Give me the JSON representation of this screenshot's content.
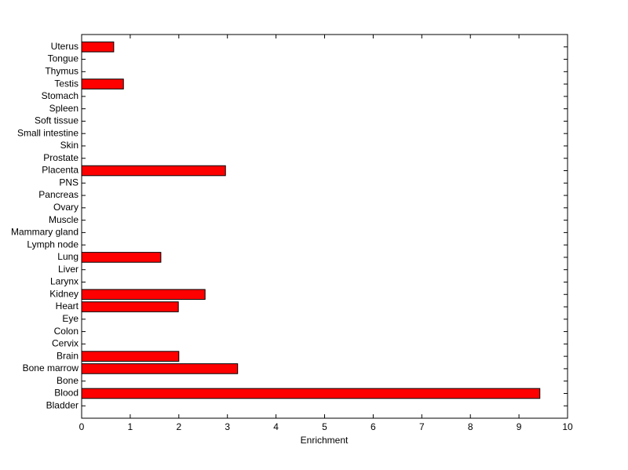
{
  "chart_data": {
    "type": "barh",
    "xlabel": "Enrichment",
    "categories": [
      "Bladder",
      "Blood",
      "Bone",
      "Bone marrow",
      "Brain",
      "Cervix",
      "Colon",
      "Eye",
      "Heart",
      "Kidney",
      "Larynx",
      "Liver",
      "Lung",
      "Lymph node",
      "Mammary gland",
      "Muscle",
      "Ovary",
      "Pancreas",
      "PNS",
      "Placenta",
      "Prostate",
      "Skin",
      "Small intestine",
      "Soft tissue",
      "Spleen",
      "Stomach",
      "Testis",
      "Thymus",
      "Tongue",
      "Uterus"
    ],
    "values": [
      0,
      9.43,
      0,
      3.21,
      2.0,
      0,
      0,
      0,
      1.99,
      2.54,
      0,
      0,
      1.63,
      0,
      0,
      0,
      0,
      0,
      0,
      2.96,
      0,
      0,
      0,
      0,
      0,
      0,
      0.86,
      0,
      0,
      0.66
    ],
    "color": "#ff0000",
    "xlim": [
      0,
      10
    ],
    "xticks": [
      0,
      1,
      2,
      3,
      4,
      5,
      6,
      7,
      8,
      9,
      10
    ]
  }
}
